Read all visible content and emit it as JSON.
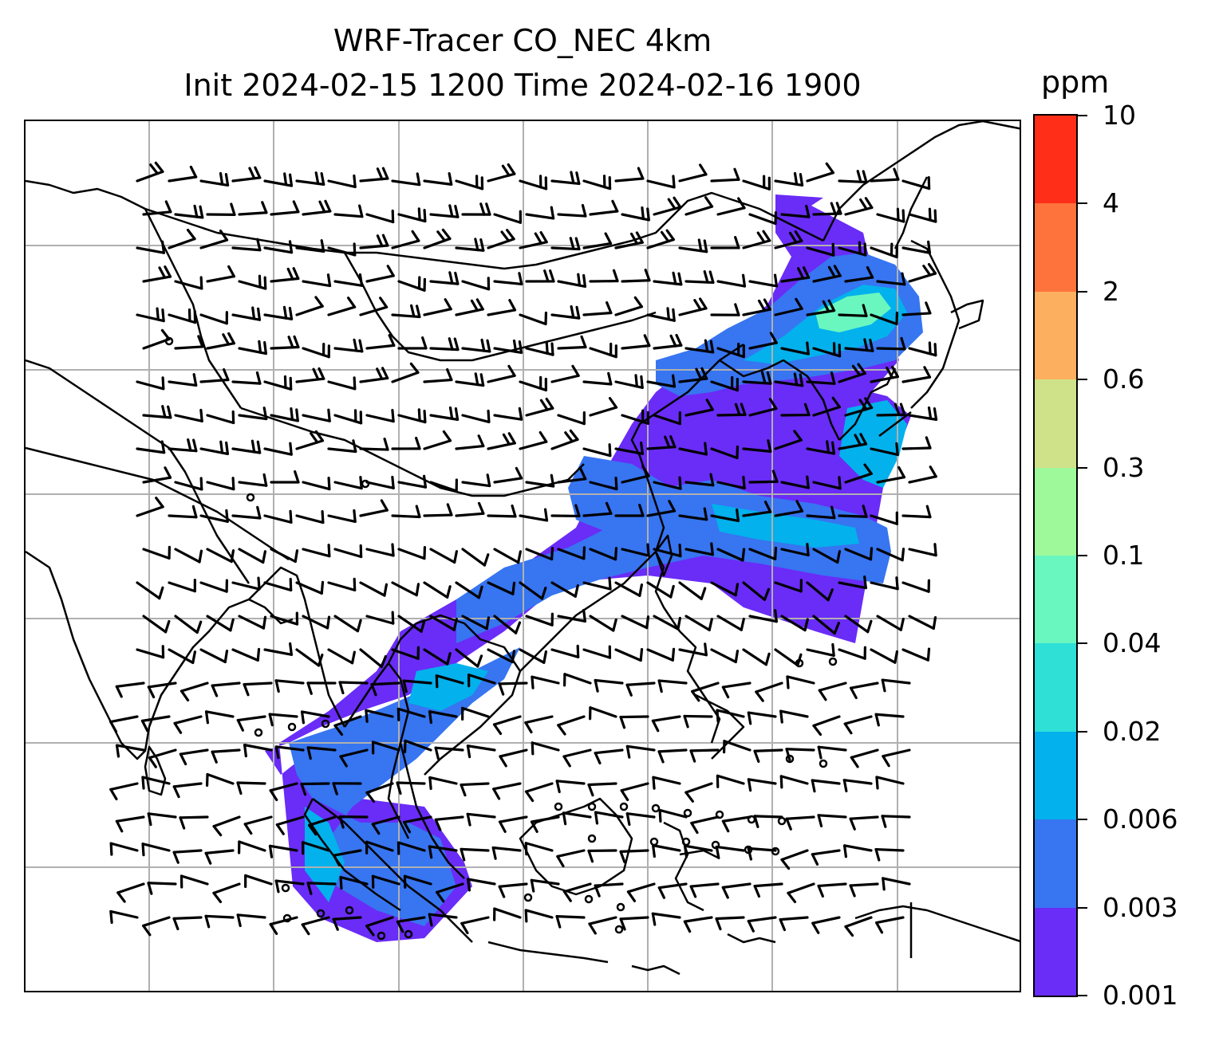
{
  "title_line1": "WRF-Tracer CO_NEC 4km",
  "title_line2": "Init 2024-02-15 1200 Time 2024-02-16 1900",
  "colorbar": {
    "unit": "ppm",
    "levels": [
      "0.001",
      "0.003",
      "0.006",
      "0.02",
      "0.04",
      "0.1",
      "0.3",
      "0.6",
      "2",
      "4",
      "10"
    ],
    "colors": [
      "#6a2cf7",
      "#3775f1",
      "#03b1ec",
      "#2ee0d6",
      "#69f7bf",
      "#9ef99b",
      "#cfe189",
      "#fdaf60",
      "#fe733c",
      "#fe2e18"
    ]
  },
  "map": {
    "gridline_color": "#b0b0b0",
    "coastline_color": "#000000",
    "plume_colors": {
      "light": "#6a2cf7",
      "core": "#3775f1",
      "inner": "#03b1ec",
      "peak": "#69f7bf"
    },
    "wind_barbs": "shown",
    "calm_markers": "shown"
  }
}
